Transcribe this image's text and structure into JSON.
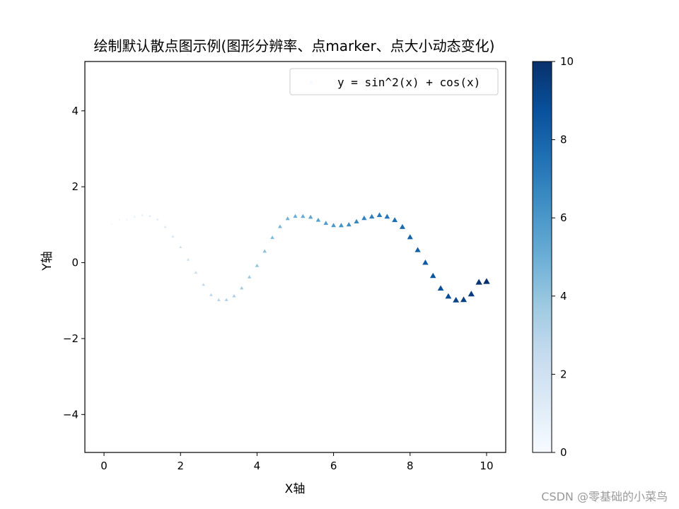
{
  "chart_data": {
    "type": "scatter",
    "title": "绘制默认散点图示例(图形分辨率、点marker、点大小动态变化)",
    "xlabel": "X轴",
    "ylabel": "Y轴",
    "xlim": [
      -0.5,
      10.5
    ],
    "ylim": [
      -5,
      5.3
    ],
    "xticks": [
      "0",
      "2",
      "4",
      "6",
      "8",
      "10"
    ],
    "yticks": [
      "−4",
      "−2",
      "0",
      "2",
      "4"
    ],
    "grid": false,
    "marker": "triangle-up",
    "legend": {
      "position": "top-right",
      "label": "y = sin^2(x) + cos(x)"
    },
    "colorbar": {
      "colormap": "Blues",
      "range": [
        0,
        10
      ],
      "ticks": [
        "0",
        "2",
        "4",
        "6",
        "8",
        "10"
      ]
    },
    "colors": {
      "light": "#f7fbff",
      "dark": "#08306b"
    },
    "series": [
      {
        "x": [
          0.2,
          0.4,
          0.6,
          0.8,
          1.0,
          1.2,
          1.4,
          1.6,
          1.8,
          2.0,
          2.2,
          2.4,
          2.6,
          2.8,
          3.0,
          3.2,
          3.4,
          3.6,
          3.8,
          4.0,
          4.2,
          4.4,
          4.6,
          4.8,
          5.0,
          5.2,
          5.4,
          5.6,
          5.8,
          6.0,
          6.2,
          6.4,
          6.6,
          6.8,
          7.0,
          7.2,
          7.4,
          7.6,
          7.8,
          8.0,
          8.2,
          8.4,
          8.6,
          8.8,
          9.0,
          9.2,
          9.4,
          9.6,
          9.8,
          10.0
        ],
        "y": [
          1.02,
          1.13,
          1.14,
          1.21,
          1.25,
          1.23,
          1.14,
          0.94,
          0.69,
          0.41,
          0.08,
          -0.26,
          -0.58,
          -0.85,
          -0.98,
          -0.98,
          -0.88,
          -0.67,
          -0.38,
          -0.08,
          0.3,
          0.66,
          0.95,
          1.16,
          1.22,
          1.22,
          1.2,
          1.12,
          1.04,
          0.98,
          0.98,
          1.0,
          1.08,
          1.17,
          1.21,
          1.25,
          1.21,
          1.12,
          0.94,
          0.67,
          0.33,
          0.0,
          -0.35,
          -0.68,
          -0.89,
          -0.99,
          -0.98,
          -0.83,
          -0.52,
          -0.5
        ],
        "color_values": [
          0.2,
          0.4,
          0.6,
          0.8,
          1.0,
          1.2,
          1.4,
          1.6,
          1.8,
          2.0,
          2.2,
          2.4,
          2.6,
          2.8,
          3.0,
          3.2,
          3.4,
          3.6,
          3.8,
          4.0,
          4.2,
          4.4,
          4.6,
          4.8,
          5.0,
          5.2,
          5.4,
          5.6,
          5.8,
          6.0,
          6.2,
          6.4,
          6.6,
          6.8,
          7.0,
          7.2,
          7.4,
          7.6,
          7.8,
          8.0,
          8.2,
          8.4,
          8.6,
          8.8,
          9.0,
          9.2,
          9.4,
          9.6,
          9.8,
          10.0
        ]
      }
    ]
  },
  "watermark": "CSDN @零基础的小菜鸟"
}
